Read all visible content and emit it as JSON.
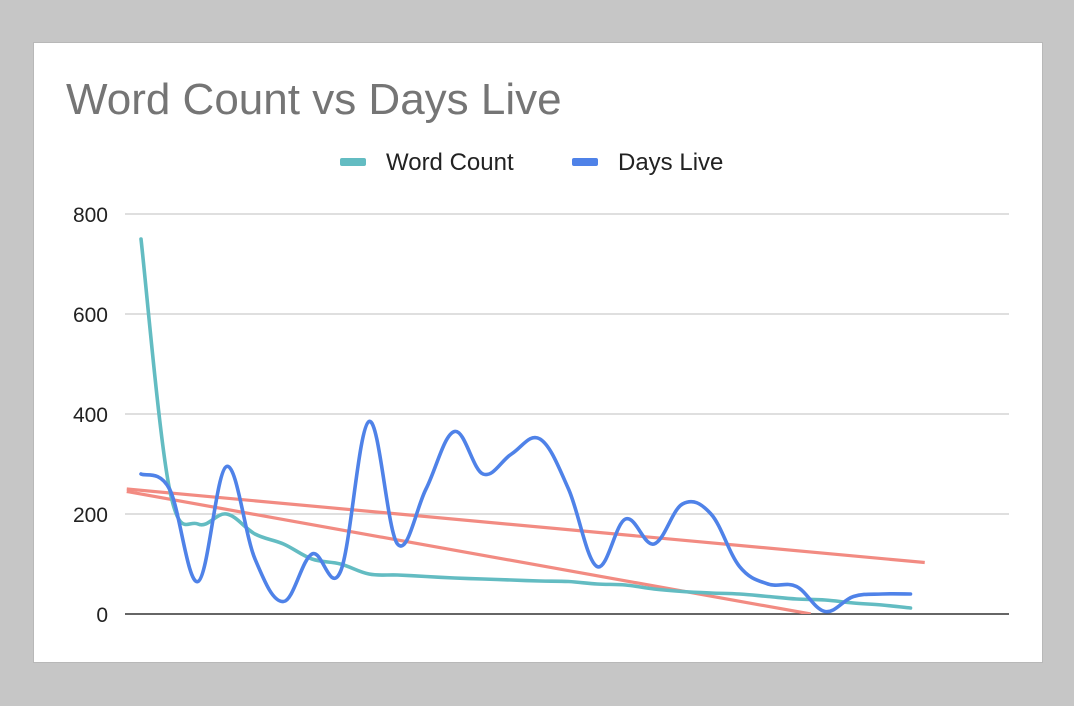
{
  "chart_data": {
    "type": "line",
    "title": "Word Count vs Days Live",
    "xlabel": "",
    "ylabel": "",
    "ylim": [
      0,
      800
    ],
    "yticks": [
      "0",
      "200",
      "400",
      "600",
      "800"
    ],
    "grid": true,
    "legend": "top",
    "x": [
      1,
      2,
      3,
      4,
      5,
      6,
      7,
      8,
      9,
      10,
      11,
      12,
      13,
      14,
      15,
      16,
      17,
      18,
      19,
      20,
      21,
      22,
      23,
      24,
      25,
      26,
      27,
      28
    ],
    "series": [
      {
        "name": "Word Count",
        "color": "#63bcc2",
        "values": [
          750,
          250,
          180,
          200,
          160,
          140,
          110,
          100,
          80,
          78,
          75,
          72,
          70,
          68,
          66,
          65,
          60,
          58,
          50,
          45,
          42,
          40,
          35,
          30,
          28,
          22,
          18,
          12
        ]
      },
      {
        "name": "Days Live",
        "color": "#4f82e8",
        "values": [
          280,
          250,
          65,
          295,
          110,
          25,
          120,
          85,
          385,
          140,
          250,
          365,
          280,
          320,
          350,
          250,
          95,
          190,
          140,
          220,
          200,
          95,
          60,
          55,
          5,
          35,
          40,
          40
        ]
      }
    ],
    "trendlines": [
      {
        "color": "#f28b82",
        "from": [
          0.5,
          250
        ],
        "to": [
          28.5,
          103
        ]
      },
      {
        "color": "#f28b82",
        "from": [
          0.5,
          245
        ],
        "to": [
          24.5,
          0
        ]
      }
    ]
  }
}
